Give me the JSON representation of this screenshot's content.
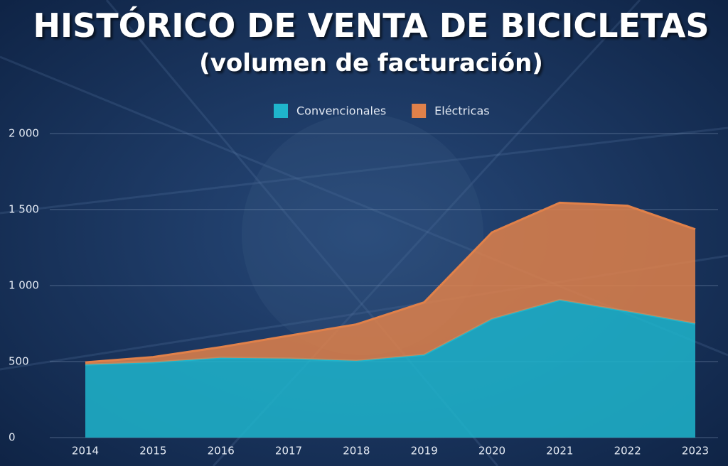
{
  "chart_data": {
    "type": "stacked_area",
    "title": "HISTÓRICO DE VENTA DE BICICLETAS",
    "subtitle": "(volumen de facturación)",
    "categories": [
      "2014",
      "2015",
      "2016",
      "2017",
      "2018",
      "2019",
      "2020",
      "2021",
      "2022",
      "2023"
    ],
    "series": [
      {
        "name": "Convencionales",
        "color": "#1fb5cc",
        "values": [
          480,
          495,
          525,
          520,
          505,
          545,
          780,
          905,
          830,
          750
        ]
      },
      {
        "name": "Eléctricas",
        "color": "#e0814a",
        "values": [
          15,
          35,
          70,
          150,
          240,
          345,
          570,
          640,
          695,
          620
        ]
      }
    ],
    "ylim": [
      0,
      2000
    ],
    "yticks": [
      0,
      500,
      {
        "value": 1000,
        "label": "1 000"
      },
      {
        "value": 1500,
        "label": "1 500"
      },
      {
        "value": 2000,
        "label": "2 000"
      }
    ],
    "grid": true,
    "legend": "top"
  }
}
